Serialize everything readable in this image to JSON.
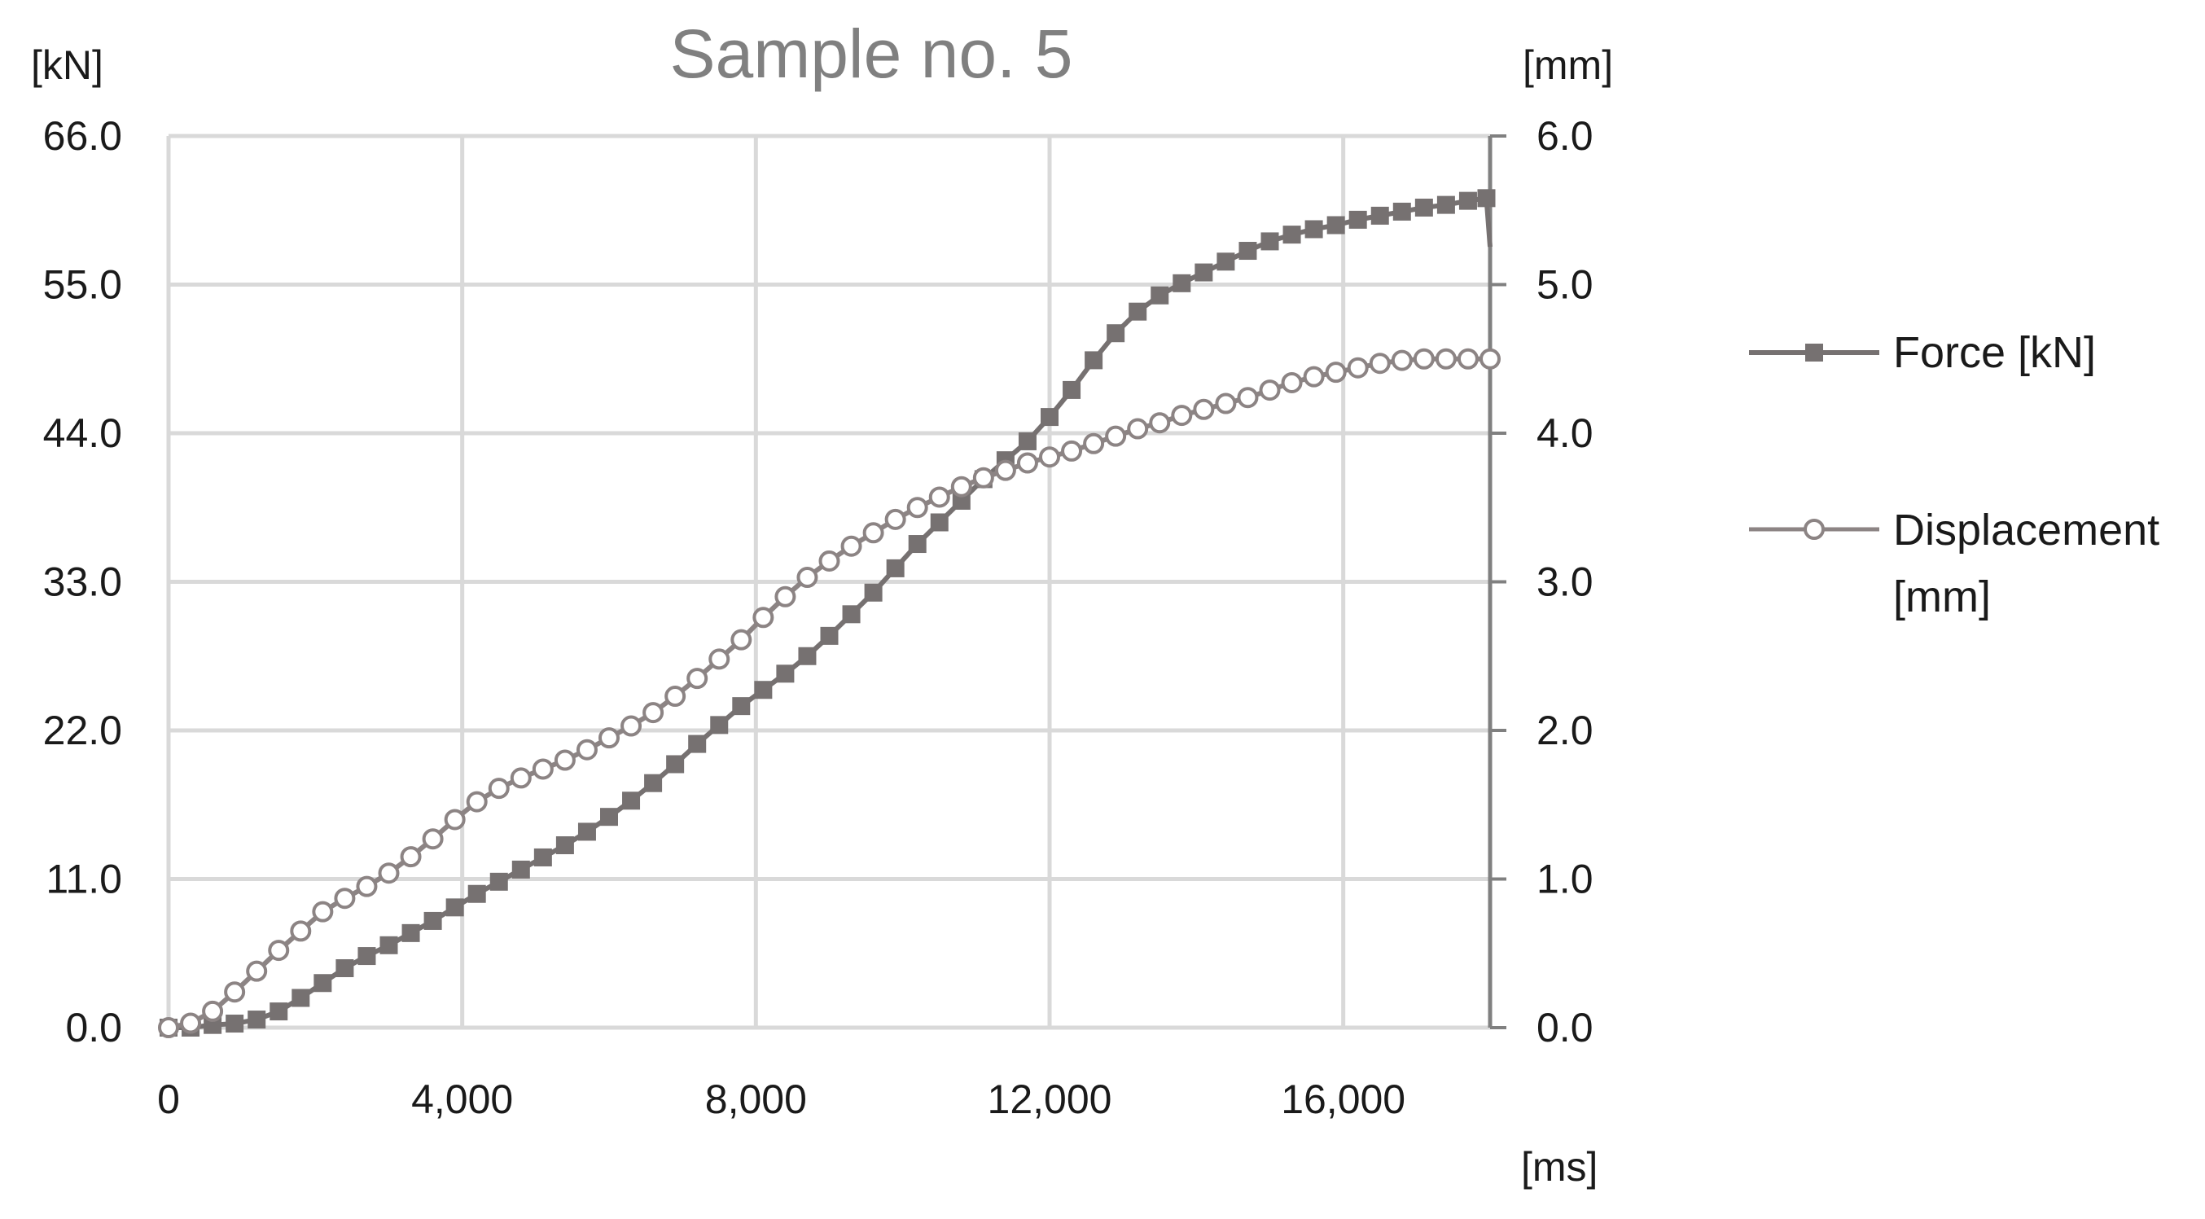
{
  "chart_data": {
    "type": "line",
    "title": "Sample no. 5",
    "x_unit": "[ms]",
    "y_left_unit": "[kN]",
    "y_right_unit": "[mm]",
    "xlim": [
      0,
      18000
    ],
    "x_ticks": [
      0,
      4000,
      8000,
      12000,
      16000
    ],
    "x_tick_labels": [
      "0",
      "4,000",
      "8,000",
      "12,000",
      "16,000"
    ],
    "y_left_lim": [
      0,
      66
    ],
    "y_left_tick_labels": [
      "0.0",
      "11.0",
      "22.0",
      "33.0",
      "44.0",
      "55.0",
      "66.0"
    ],
    "y_right_lim": [
      0,
      6
    ],
    "y_right_tick_labels": [
      "0.0",
      "1.0",
      "2.0",
      "3.0",
      "4.0",
      "5.0",
      "6.0"
    ],
    "grid": true,
    "legend_position": "right",
    "colors": {
      "force": "#767171",
      "displacement": "#8c8484",
      "grid": "#d9d9d9",
      "axis": "#808080"
    },
    "series": [
      {
        "name": "Force [kN]",
        "axis": "left",
        "marker": "square",
        "x": [
          0,
          300,
          600,
          900,
          1200,
          1500,
          1800,
          2100,
          2400,
          2700,
          3000,
          3300,
          3600,
          3900,
          4200,
          4500,
          4800,
          5100,
          5400,
          5700,
          6000,
          6300,
          6600,
          6900,
          7200,
          7500,
          7800,
          8100,
          8400,
          8700,
          9000,
          9300,
          9600,
          9900,
          10200,
          10500,
          10800,
          11100,
          11400,
          11700,
          12000,
          12300,
          12600,
          12900,
          13200,
          13500,
          13800,
          14100,
          14400,
          14700,
          15000,
          15300,
          15600,
          15900,
          16200,
          16500,
          16800,
          17100,
          17400,
          17700,
          17950,
          18000
        ],
        "values": [
          0.0,
          0.0,
          0.2,
          0.3,
          0.6,
          1.2,
          2.2,
          3.3,
          4.4,
          5.3,
          6.1,
          7.0,
          7.9,
          8.9,
          9.9,
          10.8,
          11.7,
          12.6,
          13.5,
          14.5,
          15.6,
          16.8,
          18.1,
          19.5,
          21.0,
          22.4,
          23.8,
          25.0,
          26.2,
          27.5,
          29.0,
          30.6,
          32.2,
          34.0,
          35.8,
          37.4,
          39.0,
          40.6,
          42.0,
          43.4,
          45.2,
          47.2,
          49.4,
          51.4,
          53.0,
          54.2,
          55.1,
          55.9,
          56.7,
          57.5,
          58.2,
          58.7,
          59.1,
          59.4,
          59.8,
          60.1,
          60.4,
          60.7,
          60.9,
          61.2,
          61.4,
          57.8
        ]
      },
      {
        "name": "Displacement [mm]",
        "axis": "right",
        "marker": "circle",
        "x": [
          0,
          300,
          600,
          900,
          1200,
          1500,
          1800,
          2100,
          2400,
          2700,
          3000,
          3300,
          3600,
          3900,
          4200,
          4500,
          4800,
          5100,
          5400,
          5700,
          6000,
          6300,
          6600,
          6900,
          7200,
          7500,
          7800,
          8100,
          8400,
          8700,
          9000,
          9300,
          9600,
          9900,
          10200,
          10500,
          10800,
          11100,
          11400,
          11700,
          12000,
          12300,
          12600,
          12900,
          13200,
          13500,
          13800,
          14100,
          14400,
          14700,
          15000,
          15300,
          15600,
          15900,
          16200,
          16500,
          16800,
          17100,
          17400,
          17700,
          18000
        ],
        "values": [
          0.0,
          0.03,
          0.11,
          0.24,
          0.38,
          0.52,
          0.65,
          0.78,
          0.87,
          0.95,
          1.04,
          1.15,
          1.27,
          1.4,
          1.52,
          1.61,
          1.68,
          1.74,
          1.8,
          1.87,
          1.95,
          2.03,
          2.12,
          2.23,
          2.35,
          2.48,
          2.61,
          2.76,
          2.9,
          3.03,
          3.14,
          3.24,
          3.33,
          3.42,
          3.5,
          3.57,
          3.64,
          3.7,
          3.75,
          3.8,
          3.84,
          3.88,
          3.93,
          3.98,
          4.03,
          4.07,
          4.12,
          4.16,
          4.2,
          4.24,
          4.29,
          4.34,
          4.38,
          4.41,
          4.44,
          4.47,
          4.49,
          4.5,
          4.5,
          4.5,
          4.5
        ]
      }
    ]
  }
}
